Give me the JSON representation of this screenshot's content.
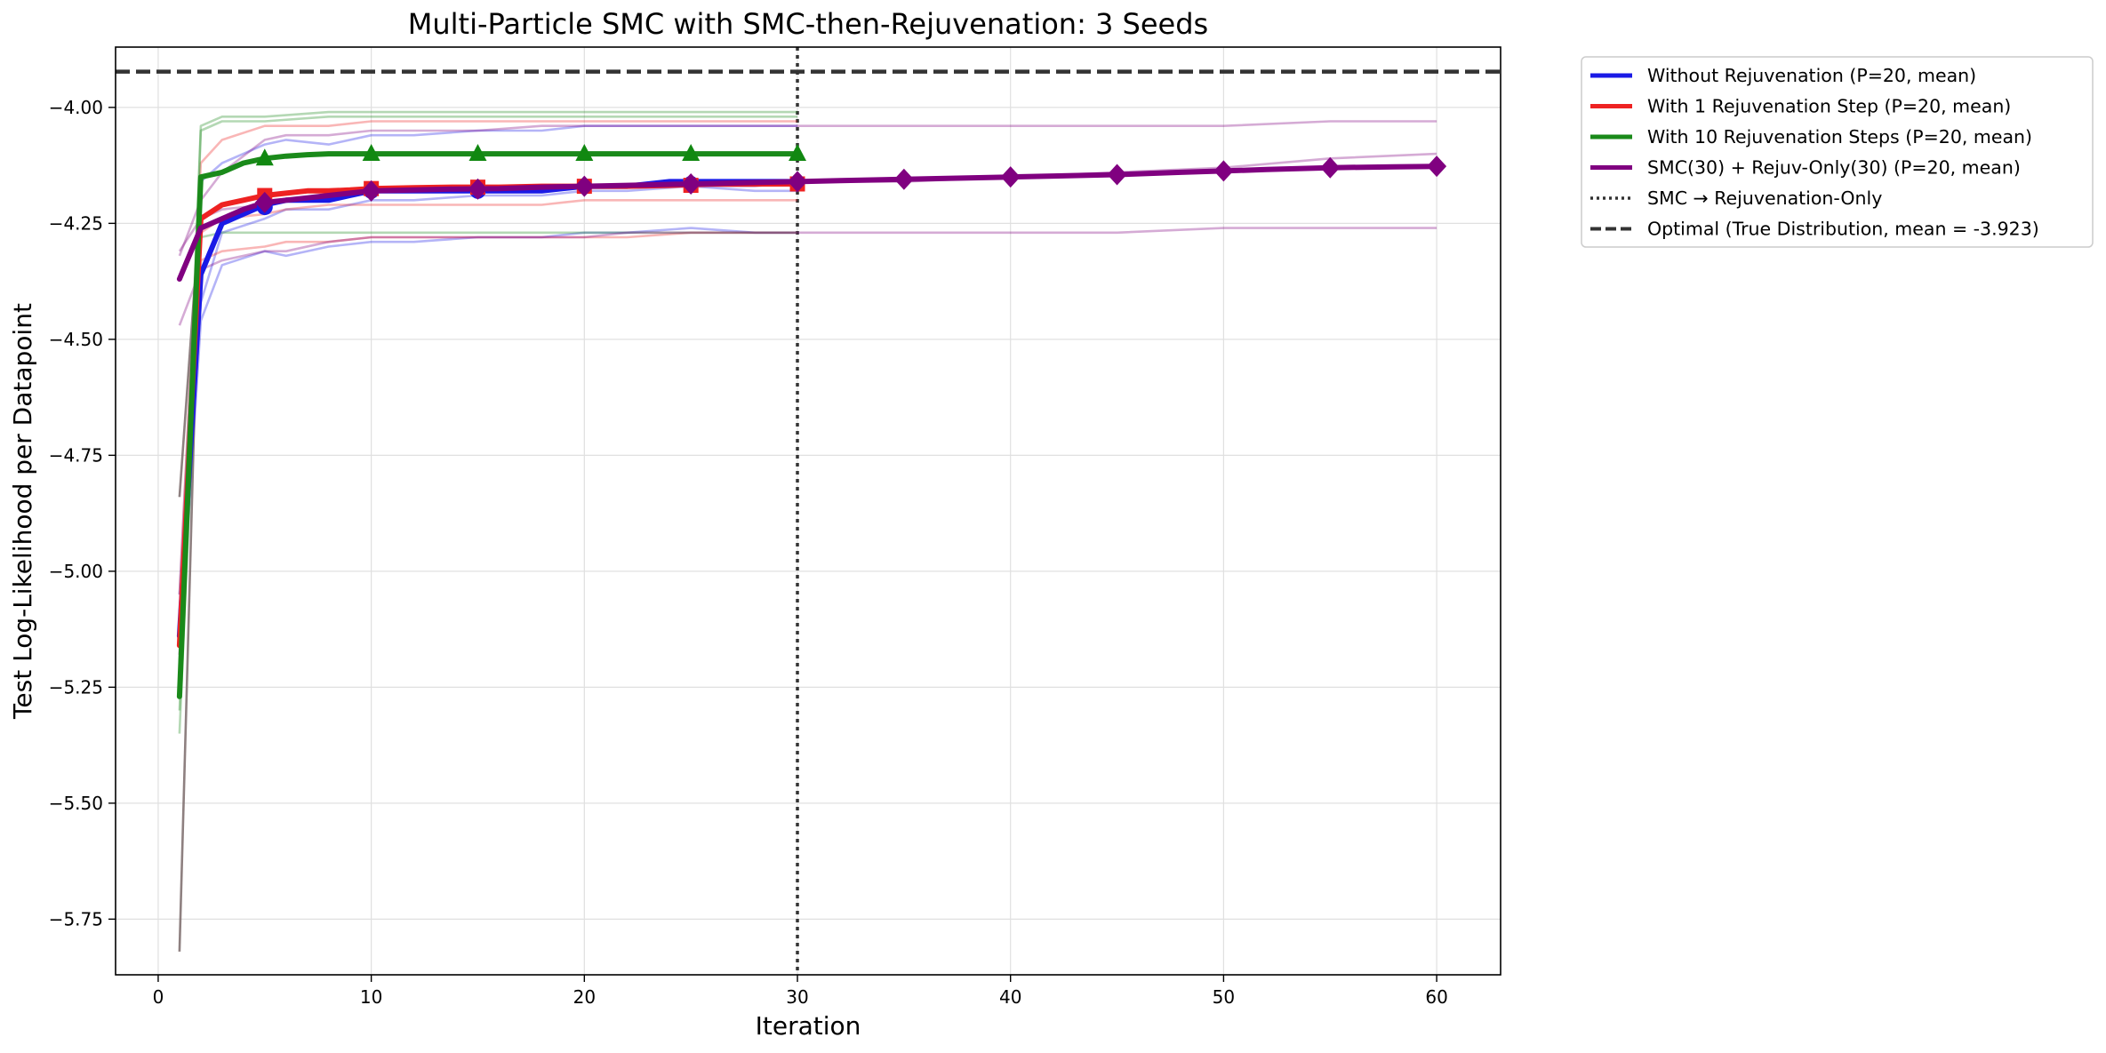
{
  "chart_data": {
    "type": "line",
    "title": "Multi-Particle SMC with SMC-then-Rejuvenation: 3 Seeds",
    "xlabel": "Iteration",
    "ylabel": "Test Log-Likelihood per Datapoint",
    "xlim": [
      -2,
      63
    ],
    "ylim": [
      -5.87,
      -3.87
    ],
    "grid": true,
    "legend_position": "outside-top-right",
    "x_ticks": [
      0,
      10,
      20,
      30,
      40,
      50,
      60
    ],
    "x_tick_labels": [
      "0",
      "10",
      "20",
      "30",
      "40",
      "50",
      "60"
    ],
    "y_ticks": [
      -4.0,
      -4.25,
      -4.5,
      -4.75,
      -5.0,
      -5.25,
      -5.5,
      -5.75
    ],
    "y_tick_labels": [
      "−4.00",
      "−4.25",
      "−4.50",
      "−4.75",
      "−5.00",
      "−5.25",
      "−5.50",
      "−5.75"
    ],
    "reference_lines": [
      {
        "orientation": "horizontal",
        "value": -3.923,
        "style": "dashed",
        "color": "#333333",
        "label": "Optimal (True Distribution, mean = -3.923)"
      },
      {
        "orientation": "vertical",
        "value": 30,
        "style": "dotted",
        "color": "#333333",
        "label": "SMC → Rejuvenation-Only"
      }
    ],
    "series": [
      {
        "name": "Without Rejuvenation (P=20, mean)",
        "color": "#1a1ae6",
        "marker": "circle",
        "x": [
          1,
          2,
          3,
          4,
          5,
          6,
          7,
          8,
          9,
          10,
          12,
          14,
          16,
          18,
          20,
          22,
          24,
          26,
          28,
          30
        ],
        "y": [
          -5.14,
          -4.36,
          -4.25,
          -4.23,
          -4.21,
          -4.2,
          -4.2,
          -4.2,
          -4.19,
          -4.18,
          -4.18,
          -4.18,
          -4.18,
          -4.18,
          -4.17,
          -4.17,
          -4.16,
          -4.16,
          -4.16,
          -4.16
        ],
        "seeds": [
          {
            "x": [
              1,
              2,
              3,
              5,
              6,
              8,
              10,
              12,
              15,
              18,
              20,
              22,
              25,
              28,
              30
            ],
            "y": [
              -5.05,
              -4.16,
              -4.12,
              -4.08,
              -4.07,
              -4.08,
              -4.06,
              -4.06,
              -4.05,
              -4.05,
              -4.04,
              -4.04,
              -4.04,
              -4.04,
              -4.04
            ]
          },
          {
            "x": [
              1,
              2,
              3,
              5,
              6,
              8,
              10,
              12,
              15,
              18,
              20,
              22,
              25,
              28,
              30
            ],
            "y": [
              -5.18,
              -4.42,
              -4.27,
              -4.24,
              -4.22,
              -4.22,
              -4.2,
              -4.2,
              -4.19,
              -4.19,
              -4.18,
              -4.18,
              -4.17,
              -4.18,
              -4.18
            ]
          },
          {
            "x": [
              1,
              2,
              3,
              5,
              6,
              8,
              10,
              12,
              15,
              18,
              20,
              22,
              25,
              28,
              30
            ],
            "y": [
              -5.2,
              -4.46,
              -4.34,
              -4.31,
              -4.32,
              -4.3,
              -4.29,
              -4.29,
              -4.28,
              -4.28,
              -4.27,
              -4.27,
              -4.26,
              -4.27,
              -4.27
            ]
          }
        ]
      },
      {
        "name": "With 1 Rejuvenation Step (P=20, mean)",
        "color": "#ee2222",
        "marker": "square",
        "x": [
          1,
          2,
          3,
          4,
          5,
          6,
          7,
          8,
          9,
          10,
          12,
          14,
          16,
          18,
          20,
          22,
          24,
          26,
          28,
          30
        ],
        "y": [
          -5.16,
          -4.24,
          -4.21,
          -4.2,
          -4.19,
          -4.185,
          -4.18,
          -4.18,
          -4.178,
          -4.175,
          -4.173,
          -4.172,
          -4.172,
          -4.17,
          -4.17,
          -4.17,
          -4.168,
          -4.165,
          -4.165,
          -4.165
        ],
        "seeds": [
          {
            "x": [
              1,
              2,
              3,
              5,
              6,
              8,
              10,
              12,
              15,
              18,
              20,
              22,
              25,
              28,
              30
            ],
            "y": [
              -5.05,
              -4.12,
              -4.07,
              -4.04,
              -4.04,
              -4.04,
              -4.03,
              -4.03,
              -4.03,
              -4.03,
              -4.03,
              -4.03,
              -4.03,
              -4.03,
              -4.03
            ]
          },
          {
            "x": [
              1,
              2,
              3,
              5,
              6,
              8,
              10,
              12,
              15,
              18,
              20,
              22,
              25,
              28,
              30
            ],
            "y": [
              -5.18,
              -4.27,
              -4.24,
              -4.23,
              -4.22,
              -4.21,
              -4.21,
              -4.21,
              -4.21,
              -4.21,
              -4.2,
              -4.2,
              -4.2,
              -4.2,
              -4.2
            ]
          },
          {
            "x": [
              1,
              2,
              3,
              5,
              6,
              8,
              10,
              12,
              15,
              18,
              20,
              22,
              25,
              28,
              30
            ],
            "y": [
              -5.26,
              -4.33,
              -4.31,
              -4.3,
              -4.29,
              -4.29,
              -4.28,
              -4.28,
              -4.28,
              -4.28,
              -4.28,
              -4.28,
              -4.27,
              -4.27,
              -4.27
            ]
          }
        ]
      },
      {
        "name": "With 10 Rejuvenation Steps (P=20, mean)",
        "color": "#1a8a1a",
        "marker": "triangle",
        "x": [
          1,
          2,
          3,
          4,
          5,
          6,
          7,
          8,
          9,
          10,
          12,
          14,
          16,
          18,
          20,
          22,
          24,
          26,
          28,
          30
        ],
        "y": [
          -5.27,
          -4.15,
          -4.14,
          -4.12,
          -4.11,
          -4.105,
          -4.102,
          -4.1,
          -4.1,
          -4.1,
          -4.1,
          -4.1,
          -4.1,
          -4.1,
          -4.1,
          -4.1,
          -4.1,
          -4.1,
          -4.1,
          -4.1
        ],
        "seeds": [
          {
            "x": [
              1,
              2,
              3,
              5,
              8,
              10,
              12,
              15,
              18,
              20,
              22,
              25,
              28,
              30
            ],
            "y": [
              -5.2,
              -4.04,
              -4.02,
              -4.02,
              -4.01,
              -4.01,
              -4.01,
              -4.01,
              -4.01,
              -4.01,
              -4.01,
              -4.01,
              -4.01,
              -4.01
            ]
          },
          {
            "x": [
              1,
              2,
              3,
              5,
              8,
              10,
              12,
              15,
              18,
              20,
              22,
              25,
              28,
              30
            ],
            "y": [
              -5.3,
              -4.05,
              -4.03,
              -4.03,
              -4.02,
              -4.02,
              -4.02,
              -4.02,
              -4.02,
              -4.02,
              -4.02,
              -4.02,
              -4.02,
              -4.02
            ]
          },
          {
            "x": [
              1,
              2,
              3,
              5,
              8,
              10,
              12,
              15,
              18,
              20,
              22,
              25,
              28,
              30
            ],
            "y": [
              -5.35,
              -4.28,
              -4.27,
              -4.27,
              -4.27,
              -4.27,
              -4.27,
              -4.27,
              -4.27,
              -4.27,
              -4.27,
              -4.27,
              -4.27,
              -4.27
            ]
          }
        ]
      },
      {
        "name": "SMC(30) + Rejuv-Only(30) (P=20, mean)",
        "color": "#800080",
        "marker": "diamond",
        "x": [
          1,
          2,
          3,
          4,
          5,
          6,
          7,
          8,
          9,
          10,
          12,
          14,
          16,
          18,
          20,
          22,
          24,
          26,
          28,
          30,
          32,
          35,
          38,
          40,
          42,
          45,
          48,
          50,
          52,
          55,
          58,
          60
        ],
        "y": [
          -4.37,
          -4.26,
          -4.24,
          -4.22,
          -4.205,
          -4.2,
          -4.195,
          -4.19,
          -4.185,
          -4.18,
          -4.178,
          -4.176,
          -4.175,
          -4.172,
          -4.17,
          -4.168,
          -4.166,
          -4.164,
          -4.162,
          -4.16,
          -4.158,
          -4.155,
          -4.152,
          -4.15,
          -4.148,
          -4.145,
          -4.14,
          -4.137,
          -4.134,
          -4.13,
          -4.128,
          -4.127
        ],
        "seeds": [
          {
            "x": [
              1,
              2,
              3,
              5,
              6,
              8,
              10,
              12,
              15,
              18,
              20,
              22,
              25,
              28,
              30,
              35,
              40,
              45,
              50,
              55,
              60
            ],
            "y": [
              -4.32,
              -4.2,
              -4.14,
              -4.07,
              -4.06,
              -4.06,
              -4.05,
              -4.05,
              -4.05,
              -4.04,
              -4.04,
              -4.04,
              -4.04,
              -4.04,
              -4.04,
              -4.04,
              -4.04,
              -4.04,
              -4.04,
              -4.03,
              -4.03
            ]
          },
          {
            "x": [
              1,
              2,
              3,
              5,
              6,
              8,
              10,
              12,
              15,
              18,
              20,
              22,
              25,
              28,
              30,
              35,
              40,
              45,
              50,
              55,
              60
            ],
            "y": [
              -4.31,
              -4.24,
              -4.22,
              -4.21,
              -4.2,
              -4.19,
              -4.18,
              -4.18,
              -4.18,
              -4.18,
              -4.17,
              -4.17,
              -4.17,
              -4.17,
              -4.16,
              -4.16,
              -4.15,
              -4.14,
              -4.13,
              -4.11,
              -4.1
            ]
          },
          {
            "x": [
              1,
              2,
              3,
              5,
              6,
              8,
              10,
              12,
              15,
              18,
              20,
              22,
              25,
              28,
              30,
              35,
              40,
              45,
              50,
              55,
              60
            ],
            "y": [
              -4.47,
              -4.35,
              -4.33,
              -4.31,
              -4.31,
              -4.29,
              -4.28,
              -4.28,
              -4.28,
              -4.28,
              -4.28,
              -4.27,
              -4.27,
              -4.27,
              -4.27,
              -4.27,
              -4.27,
              -4.27,
              -4.26,
              -4.26,
              -4.26
            ]
          }
        ]
      }
    ],
    "gray_seed_lines": [
      {
        "x": [
          1,
          2
        ],
        "y": [
          -5.82,
          -4.16
        ]
      },
      {
        "x": [
          1,
          2
        ],
        "y": [
          -4.84,
          -4.2
        ]
      }
    ],
    "markers": {
      "Without Rejuvenation (P=20, mean)": {
        "x": [
          5,
          10,
          15,
          20,
          25
        ],
        "y": [
          -4.215,
          -4.18,
          -4.18,
          -4.17,
          -4.165
        ]
      },
      "With 1 Rejuvenation Step (P=20, mean)": {
        "x": [
          5,
          10,
          15,
          20,
          25,
          30
        ],
        "y": [
          -4.19,
          -4.175,
          -4.172,
          -4.17,
          -4.168,
          -4.165
        ]
      },
      "With 10 Rejuvenation Steps (P=20, mean)": {
        "x": [
          5,
          10,
          15,
          20,
          25,
          30
        ],
        "y": [
          -4.11,
          -4.1,
          -4.1,
          -4.1,
          -4.1,
          -4.1
        ]
      },
      "SMC(30) + Rejuv-Only(30) (P=20, mean)": {
        "x": [
          5,
          10,
          15,
          20,
          25,
          30,
          35,
          40,
          45,
          50,
          55,
          60
        ],
        "y": [
          -4.205,
          -4.18,
          -4.176,
          -4.17,
          -4.165,
          -4.16,
          -4.155,
          -4.15,
          -4.145,
          -4.137,
          -4.13,
          -4.127
        ]
      }
    },
    "legend": [
      {
        "label": "Without Rejuvenation (P=20, mean)",
        "color": "#1a1ae6",
        "style": "solid"
      },
      {
        "label": "With 1 Rejuvenation Step (P=20, mean)",
        "color": "#ee2222",
        "style": "solid"
      },
      {
        "label": "With 10 Rejuvenation Steps (P=20, mean)",
        "color": "#1a8a1a",
        "style": "solid"
      },
      {
        "label": "SMC(30) + Rejuv-Only(30) (P=20, mean)",
        "color": "#800080",
        "style": "solid"
      },
      {
        "label": "SMC → Rejuvenation-Only",
        "color": "#333333",
        "style": "dotted"
      },
      {
        "label": "Optimal (True Distribution, mean = -3.923)",
        "color": "#333333",
        "style": "dashed"
      }
    ]
  }
}
